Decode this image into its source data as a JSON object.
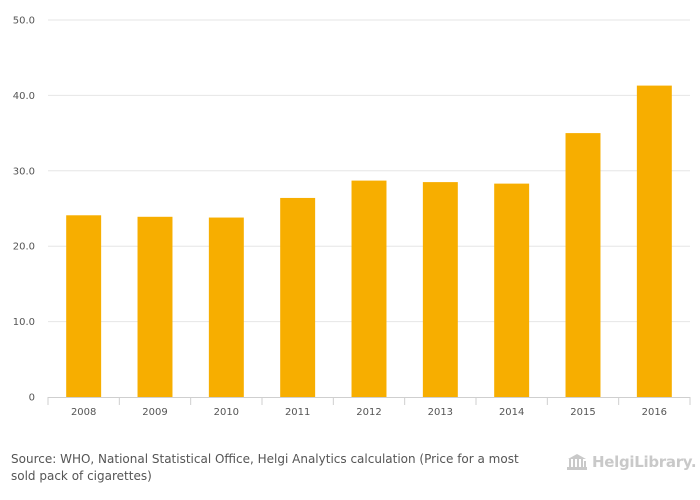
{
  "chart_data": {
    "type": "bar",
    "categories": [
      "2008",
      "2009",
      "2010",
      "2011",
      "2012",
      "2013",
      "2014",
      "2015",
      "2016"
    ],
    "values": [
      24.1,
      23.9,
      23.8,
      26.4,
      28.7,
      28.5,
      28.3,
      35.0,
      41.3
    ],
    "ylim": [
      0,
      50
    ],
    "yticks": [
      "0",
      "10.0",
      "20.0",
      "30.0",
      "40.0",
      "50.0"
    ],
    "ytick_values": [
      0,
      10,
      20,
      30,
      40,
      50
    ],
    "title": "",
    "xlabel": "",
    "ylabel": "",
    "grid": "horizontal",
    "bar_color": "#f7ae00",
    "legend": "none"
  },
  "footer": {
    "source_label": "Source:",
    "source_text": "WHO, National Statistical Office, Helgi Analytics calculation (Price for a most sold pack of cigarettes)"
  },
  "brand": {
    "name": "HelgiLibrary.",
    "icon": "library-building-icon",
    "color": "#c9c9c9"
  }
}
